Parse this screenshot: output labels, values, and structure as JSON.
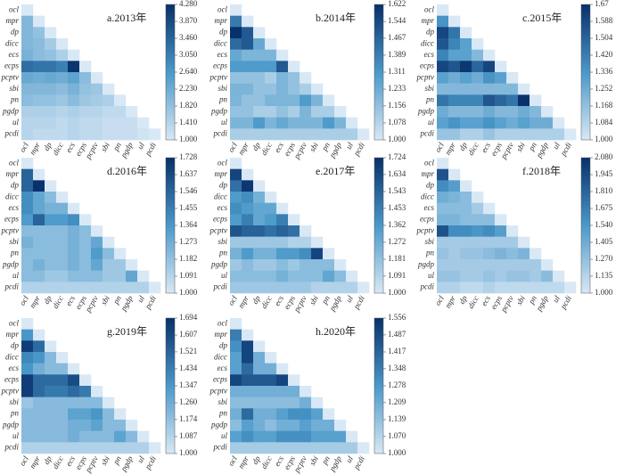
{
  "chart_data": [
    {
      "type": "heatmap",
      "title": "a.2013年",
      "categories": [
        "ocl",
        "mpr",
        "dp",
        "dicc",
        "ecs",
        "ecps",
        "pcptv",
        "sbi",
        "pn",
        "pgdp",
        "ul",
        "pcdi"
      ],
      "values": [
        [
          1
        ],
        [
          2.0,
          1
        ],
        [
          2.0,
          1.8,
          1
        ],
        [
          2.0,
          1.9,
          1.6,
          1
        ],
        [
          2.1,
          1.9,
          1.8,
          1.5,
          1
        ],
        [
          3.3,
          3.2,
          3.2,
          3.0,
          4.2,
          1
        ],
        [
          2.3,
          2.2,
          2.3,
          2.2,
          2.4,
          1.9,
          1
        ],
        [
          2.0,
          2.0,
          2.0,
          1.9,
          2.1,
          1.8,
          1.7,
          1
        ],
        [
          1.9,
          1.8,
          1.8,
          1.7,
          1.9,
          1.7,
          1.6,
          1.5,
          1
        ],
        [
          1.5,
          1.5,
          1.5,
          1.4,
          1.5,
          1.4,
          1.4,
          1.3,
          1.3,
          1
        ],
        [
          1.4,
          1.4,
          1.4,
          1.3,
          1.4,
          1.3,
          1.3,
          1.2,
          1.2,
          1.2,
          1
        ],
        [
          1.4,
          1.3,
          1.3,
          1.3,
          1.4,
          1.3,
          1.3,
          1.2,
          1.2,
          1.2,
          1.1,
          1
        ]
      ],
      "ticks": [
        {
          "value": 1,
          "label": "1.000"
        },
        {
          "value": 1.41,
          "label": "1.410"
        },
        {
          "value": 1.82,
          "label": "1.820"
        },
        {
          "value": 2.23,
          "label": "2.230"
        },
        {
          "value": 2.64,
          "label": "2.640"
        },
        {
          "value": 3.05,
          "label": "3.050"
        },
        {
          "value": 3.46,
          "label": "3.460"
        },
        {
          "value": 3.87,
          "label": "3.870"
        },
        {
          "value": 4.28,
          "label": "4.280"
        }
      ]
    },
    {
      "type": "heatmap",
      "title": "b.2014年",
      "categories": [
        "ocl",
        "mpr",
        "dp",
        "dicc",
        "ecs",
        "ecps",
        "pcptv",
        "sbi",
        "pn",
        "pgdp",
        "ul",
        "pcdi"
      ],
      "values": [
        [
          1
        ],
        [
          1.4,
          1
        ],
        [
          1.62,
          1.5,
          1
        ],
        [
          1.45,
          1.5,
          1.25,
          1
        ],
        [
          1.25,
          1.2,
          1.2,
          1.2,
          1
        ],
        [
          1.3,
          1.3,
          1.3,
          1.3,
          1.5,
          1
        ],
        [
          1.15,
          1.15,
          1.15,
          1.1,
          1.2,
          1.15,
          1
        ],
        [
          1.2,
          1.2,
          1.15,
          1.15,
          1.2,
          1.15,
          1.1,
          1
        ],
        [
          1.2,
          1.15,
          1.15,
          1.2,
          1.2,
          1.2,
          1.3,
          1.2,
          1
        ],
        [
          1.15,
          1.15,
          1.1,
          1.1,
          1.15,
          1.1,
          1.2,
          1.1,
          1.1,
          1
        ],
        [
          1.2,
          1.2,
          1.3,
          1.2,
          1.25,
          1.2,
          1.2,
          1.2,
          1.3,
          1.2,
          1
        ],
        [
          1.1,
          1.1,
          1.1,
          1.1,
          1.1,
          1.1,
          1.1,
          1.1,
          1.1,
          1.1,
          1.1,
          1
        ]
      ],
      "ticks": [
        {
          "value": 1,
          "label": "1.000"
        },
        {
          "value": 1.078,
          "label": "1.078"
        },
        {
          "value": 1.156,
          "label": "1.156"
        },
        {
          "value": 1.233,
          "label": "1.233"
        },
        {
          "value": 1.311,
          "label": "1.311"
        },
        {
          "value": 1.389,
          "label": "1.389"
        },
        {
          "value": 1.467,
          "label": "1.467"
        },
        {
          "value": 1.544,
          "label": "1.544"
        },
        {
          "value": 1.622,
          "label": "1.622"
        }
      ]
    },
    {
      "type": "heatmap",
      "title": "c.2015年",
      "categories": [
        "ocl",
        "mpr",
        "dp",
        "dicc",
        "ecs",
        "ecps",
        "pcptv",
        "sbi",
        "pn",
        "pgdp",
        "ul",
        "pcdi"
      ],
      "values": [
        [
          1
        ],
        [
          1.35,
          1
        ],
        [
          1.6,
          1.45,
          1
        ],
        [
          1.55,
          1.4,
          1.3,
          1
        ],
        [
          1.4,
          1.3,
          1.3,
          1.2,
          1
        ],
        [
          1.6,
          1.55,
          1.65,
          1.5,
          1.6,
          1
        ],
        [
          1.3,
          1.25,
          1.3,
          1.25,
          1.35,
          1.3,
          1
        ],
        [
          1.2,
          1.2,
          1.2,
          1.2,
          1.2,
          1.2,
          1.2,
          1
        ],
        [
          1.45,
          1.4,
          1.4,
          1.4,
          1.55,
          1.5,
          1.45,
          1.67,
          1
        ],
        [
          1.25,
          1.2,
          1.2,
          1.2,
          1.25,
          1.2,
          1.2,
          1.25,
          1.2,
          1
        ],
        [
          1.3,
          1.35,
          1.3,
          1.3,
          1.35,
          1.3,
          1.25,
          1.3,
          1.25,
          1.25,
          1
        ],
        [
          1.15,
          1.15,
          1.1,
          1.1,
          1.15,
          1.1,
          1.1,
          1.1,
          1.1,
          1.1,
          1.1,
          1
        ]
      ],
      "ticks": [
        {
          "value": 1,
          "label": "1.000"
        },
        {
          "value": 1.084,
          "label": "1.084"
        },
        {
          "value": 1.168,
          "label": "1.168"
        },
        {
          "value": 1.252,
          "label": "1.252"
        },
        {
          "value": 1.336,
          "label": "1.336"
        },
        {
          "value": 1.42,
          "label": "1.420"
        },
        {
          "value": 1.504,
          "label": "1.504"
        },
        {
          "value": 1.588,
          "label": "1.588"
        },
        {
          "value": 1.672,
          "label": "1.67"
        }
      ]
    },
    {
      "type": "heatmap",
      "title": "d.2016年",
      "categories": [
        "ocl",
        "mpr",
        "dp",
        "dicc",
        "ecs",
        "ecps",
        "pcptv",
        "sbi",
        "pn",
        "pgdp",
        "ul",
        "pcdi"
      ],
      "values": [
        [
          1
        ],
        [
          1.55,
          1
        ],
        [
          1.55,
          1.72,
          1
        ],
        [
          1.4,
          1.3,
          1.2,
          1
        ],
        [
          1.4,
          1.3,
          1.25,
          1.25,
          1
        ],
        [
          1.35,
          1.55,
          1.35,
          1.35,
          1.4,
          1
        ],
        [
          1.2,
          1.2,
          1.2,
          1.2,
          1.25,
          1.2,
          1
        ],
        [
          1.25,
          1.2,
          1.2,
          1.2,
          1.25,
          1.2,
          1.3,
          1
        ],
        [
          1.2,
          1.2,
          1.2,
          1.2,
          1.25,
          1.2,
          1.35,
          1.2,
          1
        ],
        [
          1.2,
          1.25,
          1.2,
          1.2,
          1.25,
          1.2,
          1.3,
          1.15,
          1.15,
          1
        ],
        [
          1.2,
          1.2,
          1.15,
          1.15,
          1.2,
          1.2,
          1.2,
          1.15,
          1.15,
          1.3,
          1
        ],
        [
          1.1,
          1.1,
          1.1,
          1.1,
          1.1,
          1.1,
          1.1,
          1.1,
          1.1,
          1.1,
          1.1,
          1
        ]
      ],
      "ticks": [
        {
          "value": 1,
          "label": "1.000"
        },
        {
          "value": 1.091,
          "label": "1.091"
        },
        {
          "value": 1.182,
          "label": "1.182"
        },
        {
          "value": 1.273,
          "label": "1.273"
        },
        {
          "value": 1.364,
          "label": "1.364"
        },
        {
          "value": 1.455,
          "label": "1.455"
        },
        {
          "value": 1.546,
          "label": "1.546"
        },
        {
          "value": 1.637,
          "label": "1.637"
        },
        {
          "value": 1.728,
          "label": "1.728"
        }
      ]
    },
    {
      "type": "heatmap",
      "title": "e.2017年",
      "categories": [
        "ocl",
        "mpr",
        "dp",
        "dicc",
        "ecs",
        "ecps",
        "pcptv",
        "sbi",
        "pn",
        "pgdp",
        "ul",
        "pcdi"
      ],
      "values": [
        [
          1
        ],
        [
          1.65,
          1
        ],
        [
          1.5,
          1.7,
          1
        ],
        [
          1.35,
          1.4,
          1.25,
          1
        ],
        [
          1.4,
          1.35,
          1.3,
          1.3,
          1
        ],
        [
          1.35,
          1.45,
          1.3,
          1.35,
          1.45,
          1
        ],
        [
          1.6,
          1.55,
          1.55,
          1.5,
          1.55,
          1.5,
          1
        ],
        [
          1.15,
          1.15,
          1.15,
          1.15,
          1.15,
          1.1,
          1.1,
          1
        ],
        [
          1.25,
          1.35,
          1.25,
          1.25,
          1.35,
          1.35,
          1.4,
          1.65,
          1
        ],
        [
          1.15,
          1.2,
          1.15,
          1.15,
          1.2,
          1.15,
          1.2,
          1.2,
          1.2,
          1
        ],
        [
          1.2,
          1.2,
          1.2,
          1.2,
          1.25,
          1.2,
          1.2,
          1.2,
          1.3,
          1.2,
          1
        ],
        [
          1.15,
          1.15,
          1.15,
          1.15,
          1.15,
          1.15,
          1.15,
          1.1,
          1.1,
          1.1,
          1.1,
          1
        ]
      ],
      "ticks": [
        {
          "value": 1,
          "label": "1.000"
        },
        {
          "value": 1.091,
          "label": "1.091"
        },
        {
          "value": 1.181,
          "label": "1.181"
        },
        {
          "value": 1.272,
          "label": "1.272"
        },
        {
          "value": 1.362,
          "label": "1.362"
        },
        {
          "value": 1.453,
          "label": "1.453"
        },
        {
          "value": 1.543,
          "label": "1.543"
        },
        {
          "value": 1.634,
          "label": "1.634"
        },
        {
          "value": 1.724,
          "label": "1.724"
        }
      ]
    },
    {
      "type": "heatmap",
      "title": "f.2018年",
      "categories": [
        "ocl",
        "mpr",
        "dp",
        "dicc",
        "ecs",
        "ecps",
        "pcptv",
        "sbi",
        "pn",
        "pgdp",
        "ul",
        "pcdi"
      ],
      "values": [
        [
          1
        ],
        [
          1.9,
          1
        ],
        [
          1.6,
          1.5,
          1
        ],
        [
          1.4,
          1.35,
          1.3,
          1
        ],
        [
          1.3,
          1.3,
          1.3,
          1.2,
          1
        ],
        [
          1.35,
          1.35,
          1.3,
          1.3,
          1.3,
          1
        ],
        [
          1.9,
          1.6,
          1.6,
          1.55,
          1.6,
          1.5,
          1
        ],
        [
          1.2,
          1.2,
          1.2,
          1.2,
          1.2,
          1.2,
          1.2,
          1
        ],
        [
          1.25,
          1.2,
          1.25,
          1.25,
          1.3,
          1.35,
          1.3,
          1.35,
          1
        ],
        [
          1.2,
          1.2,
          1.2,
          1.2,
          1.2,
          1.2,
          1.2,
          1.2,
          1.2,
          1
        ],
        [
          1.25,
          1.25,
          1.2,
          1.2,
          1.25,
          1.2,
          1.25,
          1.25,
          1.2,
          1.3,
          1
        ],
        [
          1.15,
          1.15,
          1.1,
          1.1,
          1.15,
          1.1,
          1.1,
          1.1,
          1.1,
          1.1,
          1.1,
          1
        ]
      ],
      "ticks": [
        {
          "value": 1,
          "label": "1.000"
        },
        {
          "value": 1.135,
          "label": "1.135"
        },
        {
          "value": 1.27,
          "label": "1.270"
        },
        {
          "value": 1.405,
          "label": "1.405"
        },
        {
          "value": 1.54,
          "label": "1.540"
        },
        {
          "value": 1.675,
          "label": "1.675"
        },
        {
          "value": 1.81,
          "label": "1.810"
        },
        {
          "value": 1.945,
          "label": "1.945"
        },
        {
          "value": 2.08,
          "label": "2.080"
        }
      ]
    },
    {
      "type": "heatmap",
      "title": "g.2019年",
      "categories": [
        "ocl",
        "mpr",
        "dp",
        "dicc",
        "ecs",
        "ecps",
        "pcptv",
        "sbi",
        "pn",
        "pgdp",
        "ul",
        "pcdi"
      ],
      "values": [
        [
          1
        ],
        [
          1.35,
          1
        ],
        [
          1.65,
          1.5,
          1
        ],
        [
          1.4,
          1.35,
          1.2,
          1
        ],
        [
          1.35,
          1.25,
          1.2,
          1.2,
          1
        ],
        [
          1.65,
          1.5,
          1.5,
          1.5,
          1.6,
          1
        ],
        [
          1.65,
          1.5,
          1.45,
          1.45,
          1.5,
          1.45,
          1
        ],
        [
          1.15,
          1.2,
          1.2,
          1.2,
          1.2,
          1.2,
          1.2,
          1
        ],
        [
          1.2,
          1.2,
          1.2,
          1.2,
          1.3,
          1.3,
          1.35,
          1.2,
          1
        ],
        [
          1.2,
          1.2,
          1.2,
          1.2,
          1.25,
          1.25,
          1.3,
          1.2,
          1.2,
          1
        ],
        [
          1.2,
          1.2,
          1.2,
          1.2,
          1.25,
          1.2,
          1.2,
          1.2,
          1.3,
          1.2,
          1
        ],
        [
          1.1,
          1.1,
          1.1,
          1.1,
          1.1,
          1.1,
          1.1,
          1.1,
          1.1,
          1.1,
          1.1,
          1
        ]
      ],
      "ticks": [
        {
          "value": 1,
          "label": "1.000"
        },
        {
          "value": 1.087,
          "label": "1.087"
        },
        {
          "value": 1.174,
          "label": "1.174"
        },
        {
          "value": 1.26,
          "label": "1.260"
        },
        {
          "value": 1.347,
          "label": "1.347"
        },
        {
          "value": 1.434,
          "label": "1.434"
        },
        {
          "value": 1.521,
          "label": "1.521"
        },
        {
          "value": 1.607,
          "label": "1.607"
        },
        {
          "value": 1.694,
          "label": "1.694"
        }
      ]
    },
    {
      "type": "heatmap",
      "title": "h.2020年",
      "categories": [
        "ocl",
        "mpr",
        "dp",
        "dicc",
        "ecs",
        "ecps",
        "pcptv",
        "sbi",
        "pn",
        "pgdp",
        "ul",
        "pcdi"
      ],
      "values": [
        [
          1
        ],
        [
          1.35,
          1
        ],
        [
          1.3,
          1.5,
          1
        ],
        [
          1.25,
          1.5,
          1.2,
          1
        ],
        [
          1.25,
          1.4,
          1.2,
          1.2,
          1
        ],
        [
          1.5,
          1.45,
          1.45,
          1.45,
          1.5,
          1
        ],
        [
          1.2,
          1.2,
          1.2,
          1.2,
          1.2,
          1.2,
          1
        ],
        [
          1.15,
          1.15,
          1.15,
          1.15,
          1.15,
          1.15,
          1.2,
          1
        ],
        [
          1.2,
          1.4,
          1.2,
          1.2,
          1.25,
          1.3,
          1.3,
          1.25,
          1
        ],
        [
          1.15,
          1.25,
          1.2,
          1.15,
          1.2,
          1.2,
          1.25,
          1.2,
          1.2,
          1
        ],
        [
          1.25,
          1.3,
          1.25,
          1.25,
          1.3,
          1.3,
          1.3,
          1.25,
          1.25,
          1.25,
          1
        ],
        [
          1.1,
          1.1,
          1.1,
          1.1,
          1.1,
          1.1,
          1.1,
          1.1,
          1.1,
          1.1,
          1.1,
          1
        ]
      ],
      "ticks": [
        {
          "value": 1,
          "label": "1.000"
        },
        {
          "value": 1.07,
          "label": "1.070"
        },
        {
          "value": 1.139,
          "label": "1.139"
        },
        {
          "value": 1.209,
          "label": "1.209"
        },
        {
          "value": 1.278,
          "label": "1.278"
        },
        {
          "value": 1.348,
          "label": "1.348"
        },
        {
          "value": 1.417,
          "label": "1.417"
        },
        {
          "value": 1.487,
          "label": "1.487"
        },
        {
          "value": 1.556,
          "label": "1.556"
        }
      ]
    }
  ]
}
